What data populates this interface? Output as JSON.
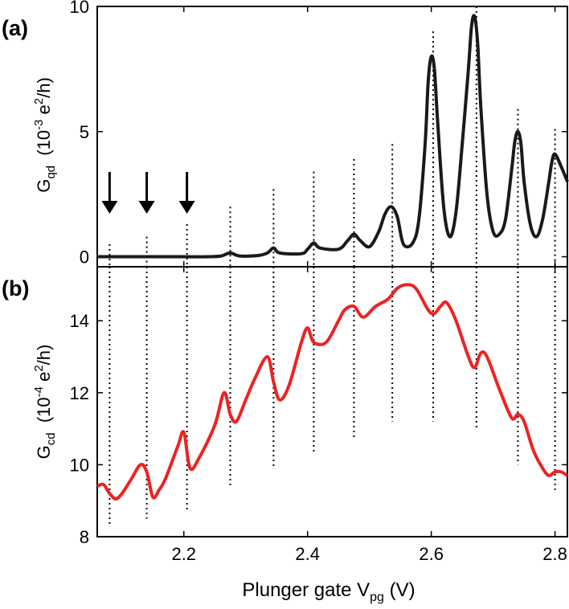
{
  "panels": [
    {
      "label": "(a)"
    },
    {
      "label": "(b)"
    }
  ],
  "xaxis": {
    "label_main": "Plunger gate V",
    "label_sub": "pg",
    "label_unit": " (V)",
    "ticks": [
      "2.2",
      "2.4",
      "2.6",
      "2.8"
    ]
  },
  "chart_data": [
    {
      "type": "line",
      "panel": "(a)",
      "ylabel": {
        "sym": "G",
        "sub": "qd",
        "unit_open": "(10",
        "exp": "-3",
        "unit_mid": " e",
        "exp2": "2",
        "unit_close": "/h)"
      },
      "xlim": [
        2.06,
        2.82
      ],
      "ylim": [
        -0.4,
        10
      ],
      "yticks": [
        "0",
        "5",
        "10"
      ],
      "color": "#1a1a1a",
      "series": [
        {
          "name": "G_qd",
          "x": [
            2.06,
            2.1,
            2.15,
            2.2,
            2.24,
            2.26,
            2.275,
            2.29,
            2.32,
            2.335,
            2.345,
            2.355,
            2.39,
            2.4,
            2.41,
            2.42,
            2.45,
            2.465,
            2.475,
            2.485,
            2.5,
            2.515,
            2.525,
            2.535,
            2.545,
            2.555,
            2.57,
            2.58,
            2.59,
            2.595,
            2.6,
            2.605,
            2.61,
            2.62,
            2.63,
            2.64,
            2.65,
            2.66,
            2.665,
            2.67,
            2.675,
            2.68,
            2.69,
            2.7,
            2.71,
            2.72,
            2.73,
            2.735,
            2.74,
            2.745,
            2.75,
            2.76,
            2.77,
            2.78,
            2.79,
            2.795,
            2.8,
            2.81,
            2.82
          ],
          "values": [
            0,
            0,
            0,
            0,
            0,
            0.03,
            0.15,
            0.03,
            0.05,
            0.15,
            0.35,
            0.15,
            0.12,
            0.3,
            0.55,
            0.35,
            0.3,
            0.65,
            0.9,
            0.65,
            0.4,
            1.0,
            1.7,
            2.0,
            1.6,
            0.5,
            0.55,
            1.5,
            4.5,
            7.0,
            8.0,
            7.5,
            5.5,
            2.0,
            0.8,
            1.8,
            4.5,
            7.5,
            9.2,
            9.6,
            8.5,
            6.0,
            2.5,
            1.0,
            0.9,
            1.5,
            3.5,
            4.6,
            5.0,
            4.5,
            3.0,
            1.3,
            0.8,
            1.5,
            3.0,
            3.8,
            4.1,
            3.6,
            3.0
          ]
        }
      ],
      "markers": [
        {
          "x": 2.08,
          "kind": "arrow"
        },
        {
          "x": 2.14,
          "kind": "arrow"
        },
        {
          "x": 2.205,
          "kind": "arrow"
        },
        {
          "x": 2.08,
          "ytop": 0.5
        },
        {
          "x": 2.14,
          "ytop": 0.8
        },
        {
          "x": 2.205,
          "ytop": 1.3
        },
        {
          "x": 2.275,
          "ytop": 2.0
        },
        {
          "x": 2.345,
          "ytop": 2.7
        },
        {
          "x": 2.41,
          "ytop": 3.4
        },
        {
          "x": 2.475,
          "ytop": 3.9
        },
        {
          "x": 2.537,
          "ytop": 4.5
        },
        {
          "x": 2.603,
          "ytop": 9.0
        },
        {
          "x": 2.673,
          "ytop": 10.0
        },
        {
          "x": 2.74,
          "ytop": 5.9
        },
        {
          "x": 2.8,
          "ytop": 5.1
        }
      ]
    },
    {
      "type": "line",
      "panel": "(b)",
      "ylabel": {
        "sym": "G",
        "sub": "cd",
        "unit_open": "(10",
        "exp": "-4",
        "unit_mid": " e",
        "exp2": "2",
        "unit_close": "/h)"
      },
      "xlim": [
        2.06,
        2.82
      ],
      "ylim": [
        8,
        15.5
      ],
      "yticks": [
        "8",
        "10",
        "12",
        "14"
      ],
      "color": "#ee2222",
      "series": [
        {
          "name": "G_cd",
          "x": [
            2.06,
            2.07,
            2.08,
            2.09,
            2.1,
            2.115,
            2.13,
            2.14,
            2.15,
            2.16,
            2.17,
            2.19,
            2.2,
            2.21,
            2.225,
            2.25,
            2.265,
            2.275,
            2.285,
            2.3,
            2.315,
            2.335,
            2.345,
            2.355,
            2.37,
            2.39,
            2.4,
            2.41,
            2.43,
            2.45,
            2.46,
            2.475,
            2.49,
            2.51,
            2.53,
            2.545,
            2.56,
            2.575,
            2.595,
            2.605,
            2.615,
            2.625,
            2.64,
            2.66,
            2.67,
            2.68,
            2.69,
            2.71,
            2.73,
            2.74,
            2.75,
            2.765,
            2.78,
            2.79,
            2.8,
            2.81,
            2.82
          ],
          "values": [
            9.4,
            9.45,
            9.2,
            9.05,
            9.2,
            9.6,
            10.0,
            9.8,
            9.1,
            9.3,
            9.6,
            10.5,
            10.9,
            9.9,
            10.2,
            11.1,
            12.0,
            11.4,
            11.2,
            11.8,
            12.4,
            13.0,
            12.3,
            11.8,
            12.2,
            13.4,
            13.8,
            13.4,
            13.4,
            14.0,
            14.3,
            14.4,
            14.1,
            14.4,
            14.6,
            14.9,
            15.0,
            14.9,
            14.3,
            14.2,
            14.4,
            14.5,
            14.0,
            13.0,
            12.7,
            13.1,
            13.0,
            12.1,
            11.3,
            11.4,
            11.2,
            10.4,
            9.9,
            9.7,
            9.8,
            9.8,
            9.7
          ]
        }
      ],
      "markers": [
        {
          "x": 2.08,
          "ybot": 8.3
        },
        {
          "x": 2.14,
          "ybot": 8.5
        },
        {
          "x": 2.205,
          "ybot": 8.7
        },
        {
          "x": 2.275,
          "ybot": 9.4
        },
        {
          "x": 2.345,
          "ybot": 9.9
        },
        {
          "x": 2.41,
          "ybot": 10.3
        },
        {
          "x": 2.475,
          "ybot": 10.7
        },
        {
          "x": 2.537,
          "ybot": 11.2
        },
        {
          "x": 2.603,
          "ybot": 11.2
        },
        {
          "x": 2.673,
          "ybot": 11.0
        },
        {
          "x": 2.74,
          "ybot": 10.0
        },
        {
          "x": 2.8,
          "ybot": 9.3
        }
      ]
    }
  ]
}
